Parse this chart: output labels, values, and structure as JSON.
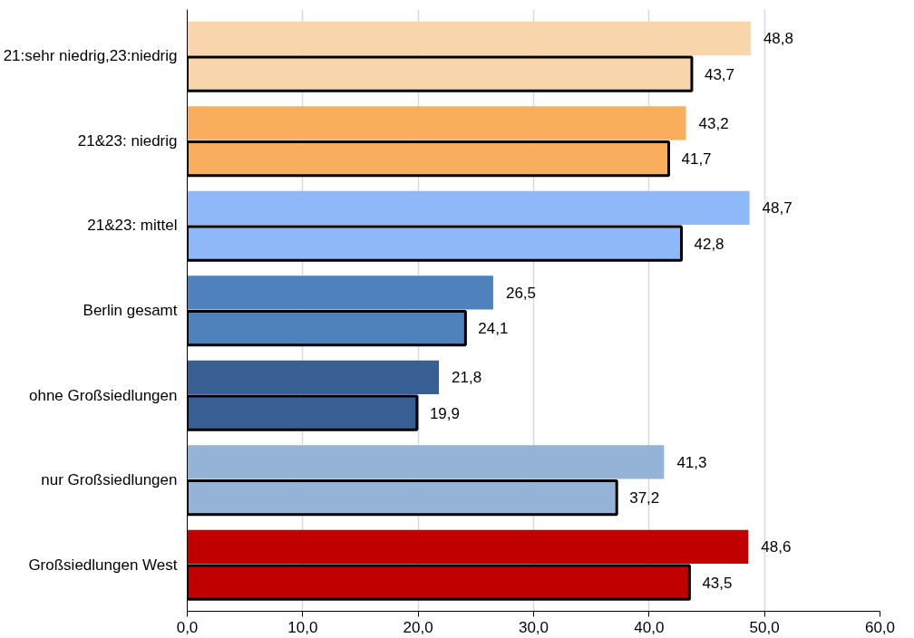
{
  "chart_data": {
    "type": "bar",
    "orientation": "horizontal",
    "categories": [
      "21:sehr niedrig,23:niedrig",
      "21&23: niedrig",
      "21&23: mittel",
      "Berlin gesamt",
      "ohne Großsiedlungen",
      "nur Großsiedlungen",
      "Großsiedlungen West"
    ],
    "series": [
      {
        "colors": [
          "#f8d5ab",
          "#f9ae5e",
          "#8fb8f8",
          "#4f81bd",
          "#375f93",
          "#95b3d7",
          "#c00000"
        ],
        "values": [
          48.8,
          43.2,
          48.7,
          26.5,
          21.8,
          41.3,
          48.6
        ],
        "value_labels": [
          "48,8",
          "43,2",
          "48,7",
          "26,5",
          "21,8",
          "41,3",
          "48,6"
        ]
      },
      {
        "colors": [
          "#f8d5ab",
          "#f9ae5e",
          "#8fb8f8",
          "#4f81bd",
          "#375f93",
          "#95b3d7",
          "#c00000"
        ],
        "values": [
          43.7,
          41.7,
          42.8,
          24.1,
          19.9,
          37.2,
          43.5
        ],
        "value_labels": [
          "43,7",
          "41,7",
          "42,8",
          "24,1",
          "19,9",
          "37,2",
          "43,5"
        ]
      }
    ],
    "xlim": [
      0,
      60
    ],
    "xticks": [
      {
        "value": 0,
        "label": "0,0"
      },
      {
        "value": 10,
        "label": "10,0"
      },
      {
        "value": 20,
        "label": "20,0"
      },
      {
        "value": 30,
        "label": "30,0"
      },
      {
        "value": 40,
        "label": "40,0"
      },
      {
        "value": 50,
        "label": "50,0"
      },
      {
        "value": 60,
        "label": "60,0"
      }
    ],
    "grid": "x"
  }
}
